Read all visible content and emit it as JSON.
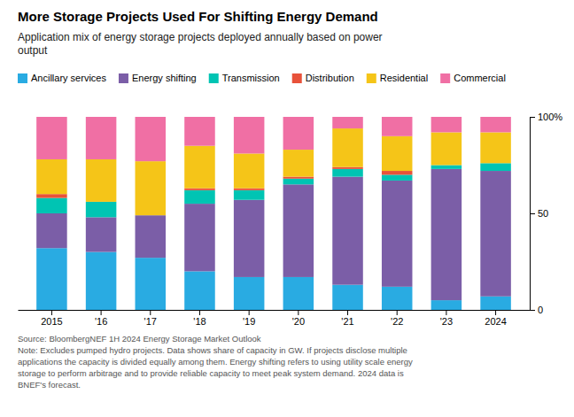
{
  "chart_data": {
    "type": "bar",
    "stacked": true,
    "title": "More Storage Projects Used For Shifting Energy Demand",
    "subtitle": "Application mix of energy storage projects deployed annually based on power\noutput",
    "source": "Source: BloombergNEF 1H 2024 Energy Storage Market Outlook\nNote: Excludes pumped hydro projects. Data shows share of capacity in GW. If projects disclose multiple\napplications the capacity is divided equally among them. Energy shifting refers to using utility scale energy\nstorage to perform arbitrage and to provide reliable capacity to meet peak system demand. 2024 data is\nBNEF's forecast.",
    "categories": [
      "2015",
      "'16",
      "'17",
      "'18",
      "'19",
      "'20",
      "'21",
      "'22",
      "'23",
      "2024"
    ],
    "series": [
      {
        "name": "Ancillary services",
        "color": "#29ABE2",
        "values": [
          32,
          30,
          27,
          20,
          17,
          17,
          13,
          12,
          5,
          7
        ]
      },
      {
        "name": "Energy shifting",
        "color": "#7B5EA7",
        "values": [
          18,
          18,
          22,
          35,
          40,
          48,
          56,
          55,
          68,
          65
        ]
      },
      {
        "name": "Transmission",
        "color": "#00C4B3",
        "values": [
          8,
          8,
          0,
          7,
          5,
          3,
          4,
          3,
          2,
          4
        ]
      },
      {
        "name": "Distribution",
        "color": "#E8523A",
        "values": [
          2,
          0,
          0,
          1,
          1,
          1,
          1,
          2,
          0,
          0
        ]
      },
      {
        "name": "Residential",
        "color": "#F5C518",
        "values": [
          18,
          22,
          28,
          22,
          18,
          14,
          20,
          18,
          17,
          16
        ]
      },
      {
        "name": "Commercial",
        "color": "#F06FA4",
        "values": [
          22,
          22,
          23,
          15,
          19,
          17,
          6,
          10,
          8,
          8
        ]
      }
    ],
    "ylim": [
      0,
      100
    ],
    "yticks": [
      0,
      50,
      {
        "value": 100,
        "label": "100%"
      }
    ],
    "grid": false,
    "legend": "top-left"
  }
}
